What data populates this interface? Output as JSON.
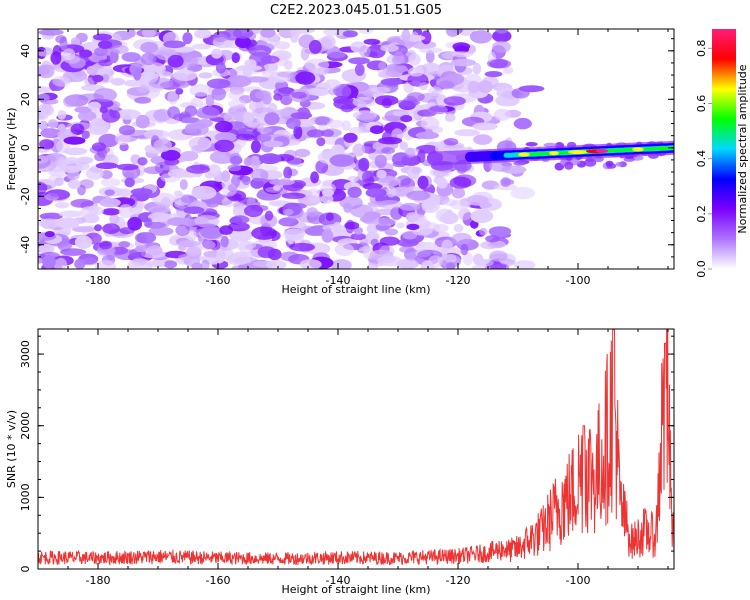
{
  "title": "C2E2.2023.045.01.51.G05",
  "chart_data": [
    {
      "type": "heatmap",
      "xlabel": "Height of straight line (km)",
      "ylabel": "Frequency (Hz)",
      "xlim": [
        -190,
        -84
      ],
      "ylim": [
        -50,
        49
      ],
      "x_ticks": [
        -180,
        -160,
        -140,
        -120,
        -100
      ],
      "x_tick_labels": [
        "-180",
        "-160",
        "-140",
        "-120",
        "-100"
      ],
      "y_ticks": [
        -40,
        -20,
        0,
        20,
        40
      ],
      "y_tick_labels": [
        "-40",
        "-20",
        "0",
        "20",
        "40"
      ],
      "colorbar": {
        "label": "Normalized spectral amplitude",
        "range": [
          0.0,
          0.87
        ],
        "ticks": [
          0.0,
          0.2,
          0.4,
          0.6,
          0.8
        ],
        "tick_labels": [
          "0.0",
          "0.2",
          "0.4",
          "0.6",
          "0.8"
        ],
        "colormap": [
          "#ffffff",
          "#ad74ff",
          "#7a00ff",
          "#0000ff",
          "#00d8ff",
          "#00ff00",
          "#ffff00",
          "#ff0000",
          "#ff1e78"
        ]
      },
      "noise_region": {
        "x_range": [
          -190,
          -112
        ],
        "freq_range": [
          -50,
          49
        ],
        "typical_amplitude": [
          0.02,
          0.1
        ]
      },
      "signal_band": {
        "x_range": [
          -120,
          -84
        ],
        "center_freq_start": -4,
        "center_freq_end": 0,
        "width_hz": 5,
        "peak_amplitude": 0.85,
        "peak_x": -96
      }
    },
    {
      "type": "line",
      "xlabel": "Height of straight line (km)",
      "ylabel": "SNR (10 * v/v)",
      "xlim": [
        -190,
        -84
      ],
      "ylim": [
        0,
        3350
      ],
      "x_ticks": [
        -180,
        -160,
        -140,
        -120,
        -100
      ],
      "x_tick_labels": [
        "-180",
        "-160",
        "-140",
        "-120",
        "-100"
      ],
      "y_ticks": [
        0,
        1000,
        2000,
        3000
      ],
      "y_tick_labels": [
        "0",
        "1000",
        "2000",
        "3000"
      ],
      "color": "#ee3333",
      "series": [
        {
          "x": [
            -190,
            -180,
            -170,
            -160,
            -150,
            -140,
            -130,
            -120,
            -115,
            -110,
            -106,
            -103,
            -101,
            -99,
            -97,
            -95,
            -94,
            -93,
            -91,
            -89,
            -87,
            -86,
            -85,
            -84.5,
            -84
          ],
          "values": [
            180,
            170,
            190,
            170,
            160,
            175,
            170,
            200,
            250,
            380,
            700,
            1200,
            1400,
            1900,
            1700,
            2500,
            3300,
            1200,
            500,
            700,
            600,
            2700,
            3100,
            1200,
            500
          ]
        }
      ]
    }
  ]
}
